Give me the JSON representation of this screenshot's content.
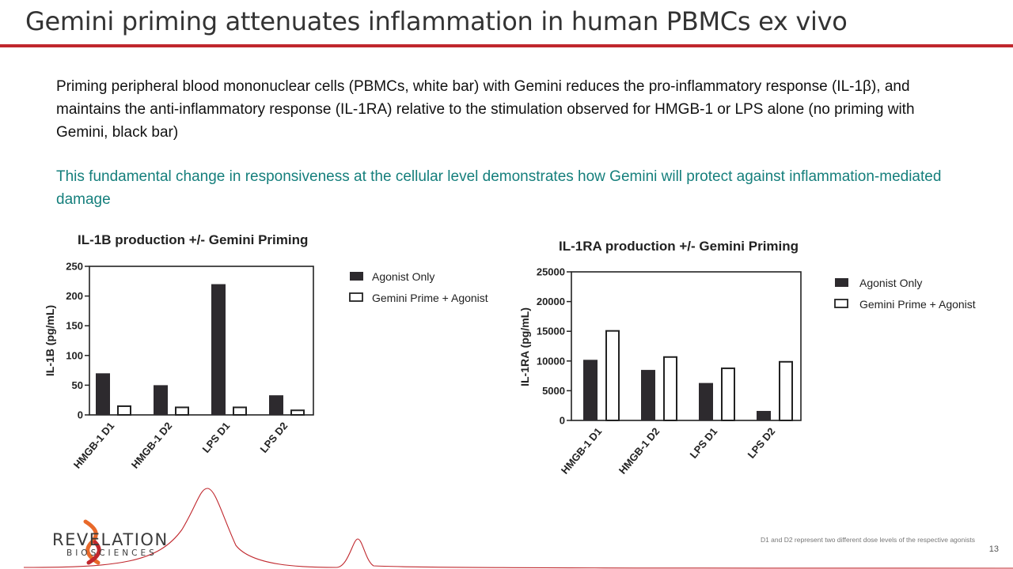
{
  "title": "Gemini priming attenuates inflammation in human PBMCs ex vivo",
  "paragraph1": "Priming  peripheral blood mononuclear cells (PBMCs, white bar) with Gemini reduces the pro-inflammatory response (IL-1β), and maintains the anti-inflammatory response (IL-1RA) relative to the  stimulation observed for HMGB-1 or LPS alone (no priming with Gemini, black bar)",
  "paragraph2": "This fundamental change in responsiveness at the cellular level demonstrates how Gemini will protect against inflammation-mediated damage",
  "footnote": "D1 and D2 represent two different dose levels of the respective agonists",
  "page_number": "13",
  "logo": {
    "name": "REVELATION",
    "subtitle": "BIOSCIENCES"
  },
  "colors": {
    "accent_red": "#c0272d",
    "teal_text": "#157f7c",
    "bar_dark": "#2d2a2e",
    "logo_orange": "#e8692a",
    "logo_red": "#c0272d"
  },
  "chart_data": [
    {
      "type": "bar",
      "title": "IL-1B production +/- Gemini Priming",
      "ylabel": "IL-1B (pg/mL)",
      "xlabel": "",
      "categories": [
        "HMGB-1 D1",
        "HMGB-1 D2",
        "LPS D1",
        "LPS D2"
      ],
      "ylim": [
        0,
        250
      ],
      "yticks": [
        "0",
        "50",
        "100",
        "150",
        "200",
        "250"
      ],
      "series": [
        {
          "name": "Agonist Only",
          "values": [
            70,
            50,
            220,
            33
          ]
        },
        {
          "name": "Gemini Prime + Agonist",
          "values": [
            16,
            14,
            14,
            9
          ]
        }
      ],
      "legend": "right"
    },
    {
      "type": "bar",
      "title": "IL-1RA production +/- Gemini Priming",
      "ylabel": "IL-1RA (pg/mL)",
      "xlabel": "",
      "categories": [
        "HMGB-1 D1",
        "HMGB-1 D2",
        "LPS D1",
        "LPS D2"
      ],
      "ylim": [
        0,
        25000
      ],
      "yticks": [
        "0",
        "5000",
        "10000",
        "15000",
        "20000",
        "25000"
      ],
      "series": [
        {
          "name": "Agonist Only",
          "values": [
            10200,
            8500,
            6300,
            1600
          ]
        },
        {
          "name": "Gemini Prime + Agonist",
          "values": [
            15200,
            10800,
            8900,
            10000
          ]
        }
      ],
      "legend": "right"
    }
  ]
}
